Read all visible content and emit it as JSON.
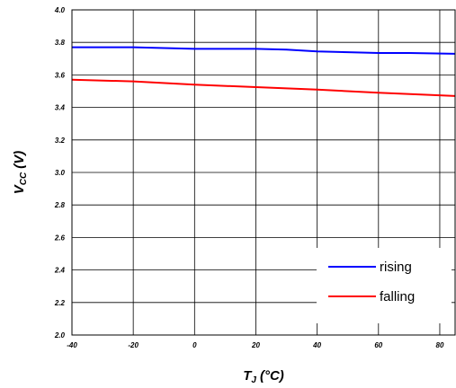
{
  "chart_data": {
    "type": "line",
    "title": "",
    "xlabel": {
      "main": "T",
      "sub": "J",
      "unit": "(°C)"
    },
    "ylabel": {
      "main": "V",
      "sub": "CC",
      "unit": "(V)"
    },
    "xlim": [
      -40,
      85
    ],
    "ylim": [
      2.0,
      4.0
    ],
    "x_ticks": [
      "-40",
      "-20",
      "0",
      "20",
      "40",
      "60",
      "80"
    ],
    "y_ticks": [
      "2.0",
      "2.2",
      "2.4",
      "2.6",
      "2.8",
      "3.0",
      "3.2",
      "3.4",
      "3.6",
      "3.8",
      "4.0"
    ],
    "grid": true,
    "legend_position": "bottom-right",
    "series": [
      {
        "name": "rising",
        "color": "#0000ff",
        "x": [
          -40,
          -20,
          0,
          10,
          20,
          30,
          40,
          50,
          60,
          70,
          85
        ],
        "y": [
          3.77,
          3.77,
          3.76,
          3.76,
          3.76,
          3.755,
          3.745,
          3.74,
          3.735,
          3.735,
          3.73
        ]
      },
      {
        "name": "falling",
        "color": "#ff0000",
        "x": [
          -40,
          -20,
          0,
          20,
          40,
          60,
          85
        ],
        "y": [
          3.57,
          3.56,
          3.54,
          3.525,
          3.51,
          3.49,
          3.47
        ]
      }
    ]
  }
}
